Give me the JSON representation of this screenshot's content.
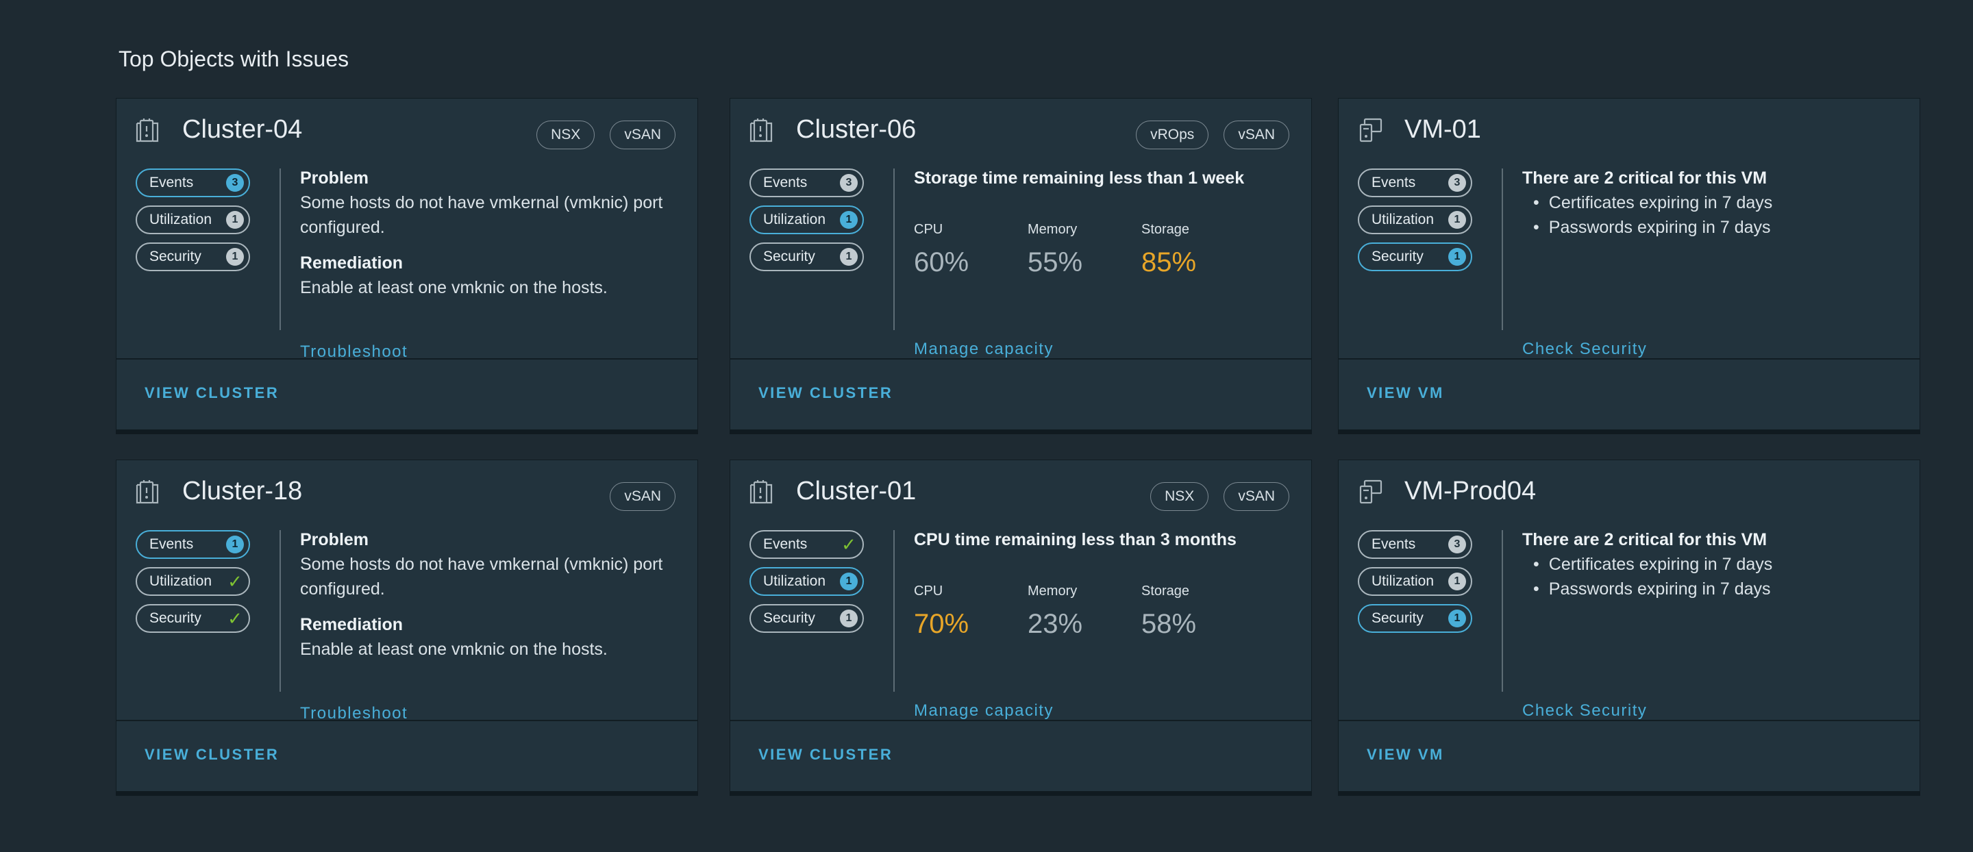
{
  "page_title": "Top Objects with Issues",
  "colors": {
    "accent": "#49afd9",
    "warning": "#e8a628",
    "ok": "#7ec232",
    "background": "#1e2a32",
    "card": "#22333d"
  },
  "pill_labels": {
    "events": "Events",
    "utilization": "Utilization",
    "security": "Security"
  },
  "cards": [
    {
      "title": "Cluster-04",
      "icon": "cluster-icon",
      "tags": [
        "NSX",
        "vSAN"
      ],
      "badges": {
        "events": "3",
        "utilization": "1",
        "security": "1"
      },
      "heading1": "Problem",
      "text1": "Some hosts do not have vmkernal (vmknic) port configured.",
      "heading2": "Remediation",
      "text2": "Enable at least one vmknic on the hosts.",
      "action": "Troubleshoot",
      "footer": "VIEW CLUSTER"
    },
    {
      "title": "Cluster-06",
      "icon": "cluster-icon",
      "tags": [
        "vROps",
        "vSAN"
      ],
      "badges": {
        "events": "3",
        "utilization": "1",
        "security": "1"
      },
      "headline": "Storage time remaining less than 1 week",
      "metrics": {
        "cpu_label": "CPU",
        "cpu": "60%",
        "memory_label": "Memory",
        "memory": "55%",
        "storage_label": "Storage",
        "storage": "85%"
      },
      "action": "Manage capacity",
      "footer": "VIEW CLUSTER"
    },
    {
      "title": "VM-01",
      "icon": "vm-icon",
      "tags": [],
      "badges": {
        "events": "3",
        "utilization": "1",
        "security": "1"
      },
      "headline": "There are 2 critical for this VM",
      "bullets": [
        "Certificates expiring in 7 days",
        "Passwords expiring in 7 days"
      ],
      "action": "Check Security",
      "footer": "VIEW VM"
    },
    {
      "title": "Cluster-18",
      "icon": "cluster-icon",
      "tags": [
        "vSAN"
      ],
      "badges": {
        "events": "1",
        "utilization": "check",
        "security": "check"
      },
      "heading1": "Problem",
      "text1": "Some hosts do not have vmkernal (vmknic) port configured.",
      "heading2": "Remediation",
      "text2": "Enable at least one vmknic on the hosts.",
      "action": "Troubleshoot",
      "footer": "VIEW CLUSTER"
    },
    {
      "title": "Cluster-01",
      "icon": "cluster-icon",
      "tags": [
        "NSX",
        "vSAN"
      ],
      "badges": {
        "events": "check",
        "utilization": "1",
        "security": "1"
      },
      "headline": "CPU time remaining less than 3 months",
      "metrics": {
        "cpu_label": "CPU",
        "cpu": "70%",
        "memory_label": "Memory",
        "memory": "23%",
        "storage_label": "Storage",
        "storage": "58%"
      },
      "action": "Manage capacity",
      "footer": "VIEW CLUSTER"
    },
    {
      "title": "VM-Prod04",
      "icon": "vm-icon",
      "tags": [],
      "badges": {
        "events": "3",
        "utilization": "1",
        "security": "1"
      },
      "headline": "There are 2 critical for this VM",
      "bullets": [
        "Certificates expiring in 7 days",
        "Passwords expiring in 7 days"
      ],
      "action": "Check Security",
      "footer": "VIEW VM"
    }
  ]
}
